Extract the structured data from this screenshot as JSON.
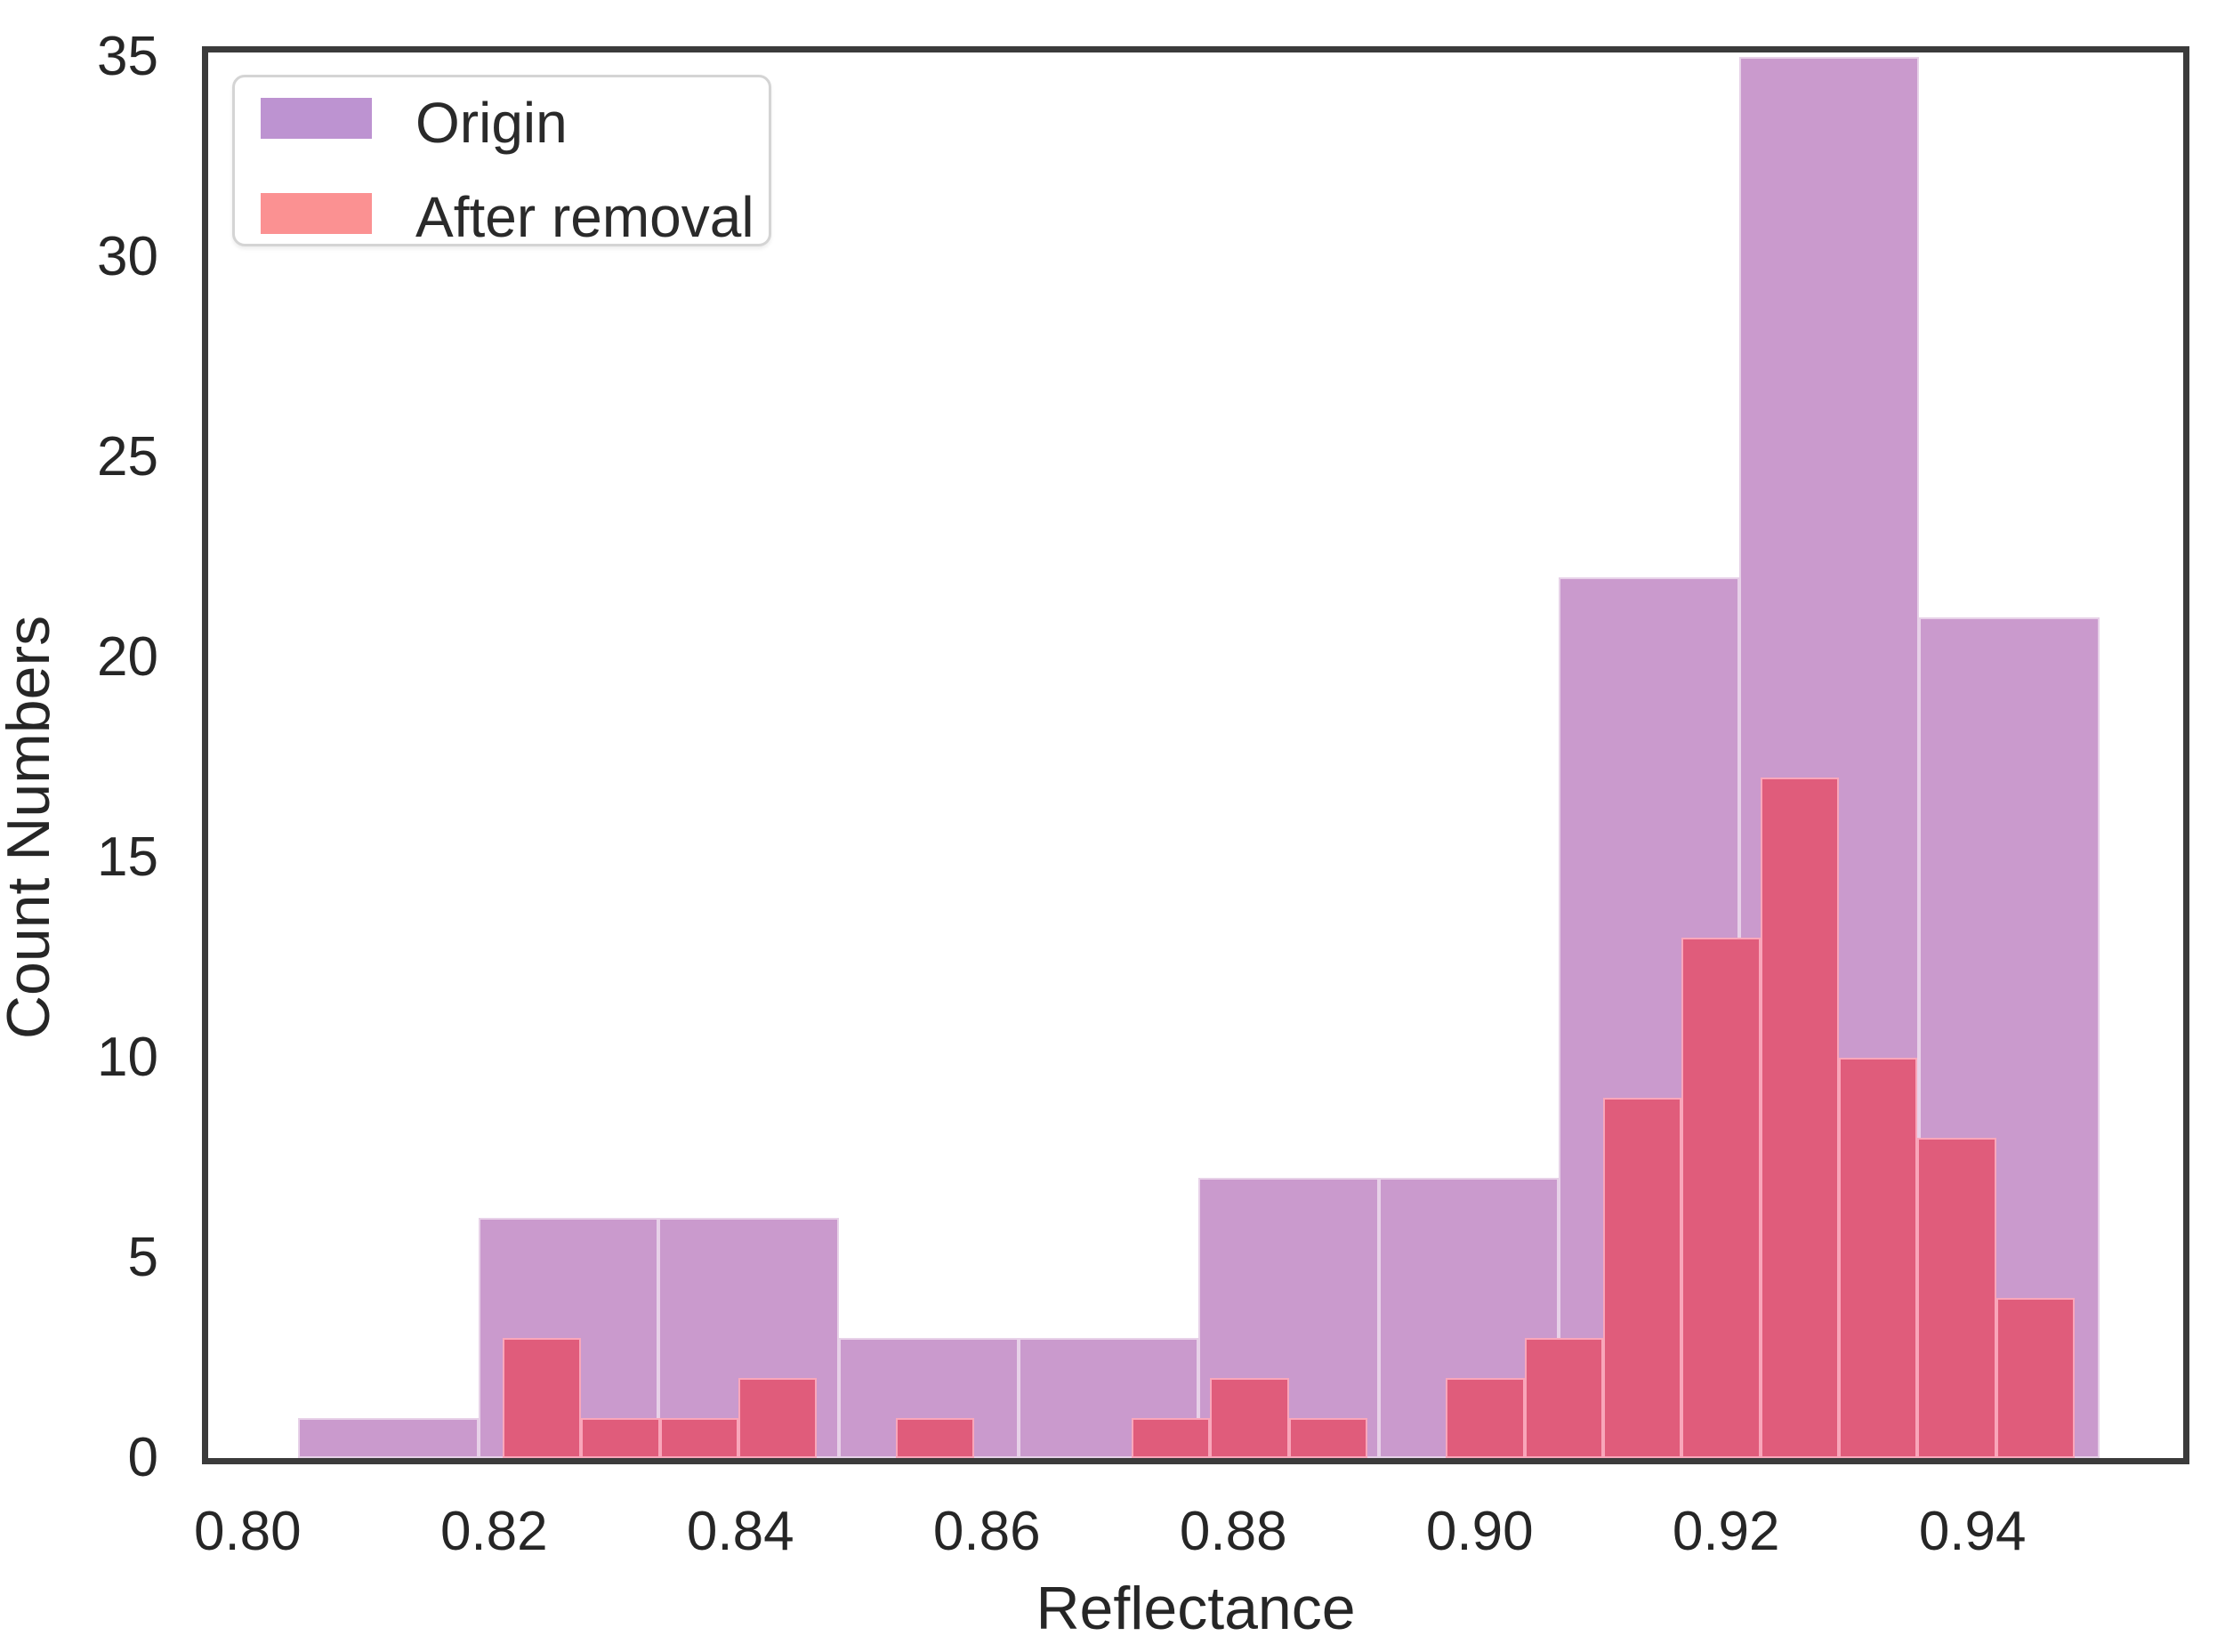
{
  "chart_data": {
    "type": "bar",
    "subtype": "overlaid-histogram",
    "title": "",
    "xlabel": "Reflectance",
    "ylabel": "Count Numbers",
    "xlim": [
      0.7968,
      0.9571
    ],
    "ylim": [
      0,
      35.1
    ],
    "grid": false,
    "legend_position": "upper-left",
    "xticks": [
      {
        "value": 0.8,
        "label": "0.80"
      },
      {
        "value": 0.82,
        "label": "0.82"
      },
      {
        "value": 0.84,
        "label": "0.84"
      },
      {
        "value": 0.86,
        "label": "0.86"
      },
      {
        "value": 0.88,
        "label": "0.88"
      },
      {
        "value": 0.9,
        "label": "0.90"
      },
      {
        "value": 0.92,
        "label": "0.92"
      },
      {
        "value": 0.94,
        "label": "0.94"
      }
    ],
    "yticks": [
      {
        "value": 0,
        "label": "0"
      },
      {
        "value": 5,
        "label": "5"
      },
      {
        "value": 10,
        "label": "10"
      },
      {
        "value": 15,
        "label": "15"
      },
      {
        "value": 20,
        "label": "20"
      },
      {
        "value": 25,
        "label": "25"
      },
      {
        "value": 30,
        "label": "30"
      },
      {
        "value": 35,
        "label": "35"
      }
    ],
    "legend": [
      {
        "label": "Origin",
        "swatch": "#bd93d1"
      },
      {
        "label": "After removal",
        "swatch": "#fb9192"
      }
    ],
    "series": [
      {
        "name": "Origin",
        "css_class": "origin",
        "bar_color": "#ca9acd",
        "bin_start": 0.8041,
        "bin_width": 0.01462,
        "counts": [
          1,
          6,
          6,
          3,
          3,
          7,
          7,
          22,
          35,
          21
        ]
      },
      {
        "name": "After removal",
        "css_class": "removal",
        "bar_color": "#e05c7b",
        "bin_start": 0.8207,
        "bin_width": 0.00638,
        "counts": [
          3,
          1,
          1,
          2,
          0,
          1,
          0,
          0,
          1,
          2,
          1,
          0,
          2,
          3,
          9,
          13,
          17,
          10,
          8,
          4
        ]
      }
    ],
    "colors": {
      "spine": "#3b3b3b",
      "text": "#262626",
      "background": "#ffffff"
    }
  }
}
